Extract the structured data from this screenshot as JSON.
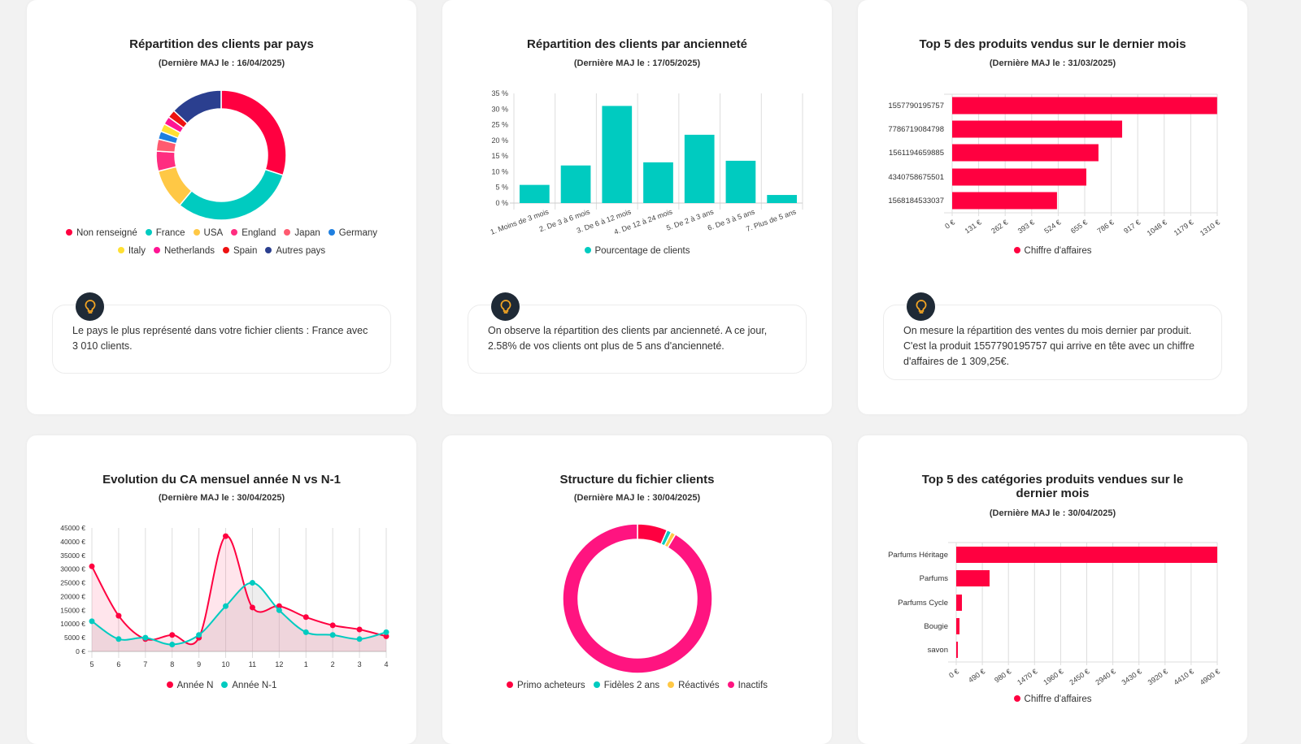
{
  "colors": {
    "red": "#ff0040",
    "cyan": "#00cbc0",
    "yellow": "#ffc845",
    "pink": "#ff2d80",
    "coral": "#ff5a70",
    "blue": "#1e7fe0",
    "lightyellow": "#ffe033",
    "magenta": "#ff1493",
    "spain": "#ee1111",
    "navy": "#2b3f8f",
    "bulb": "#f5a623"
  },
  "cards": [
    {
      "title": "Répartition des clients par pays",
      "subtitle": "(Dernière MAJ le : 16/04/2025)",
      "insight": "Le pays le plus représenté dans votre fichier clients : France avec 3 010 clients.",
      "icon": "lightbulb-icon"
    },
    {
      "title": "Répartition des clients par ancienneté",
      "subtitle": "(Dernière MAJ le : 17/05/2025)",
      "insight": "On observe la répartition des clients par ancienneté. A ce jour, 2.58% de vos clients ont plus de 5 ans d'ancienneté.",
      "icon": "lightbulb-icon"
    },
    {
      "title": "Top 5 des produits vendus sur le dernier mois",
      "subtitle": "(Dernière MAJ le : 31/03/2025)",
      "insight": "On mesure la répartition des ventes du mois dernier par produit. C'est la produit 1557790195757 qui arrive en tête avec un chiffre d'affaires de 1 309,25€.",
      "icon": "lightbulb-icon"
    },
    {
      "title": "Evolution du CA mensuel année N vs N-1",
      "subtitle": "(Dernière MAJ le : 30/04/2025)"
    },
    {
      "title": "Structure du fichier clients",
      "subtitle": "(Dernière MAJ le : 30/04/2025)"
    },
    {
      "title": "Top 5 des catégories produits vendues sur le dernier mois",
      "subtitle": "(Dernière MAJ le : 30/04/2025)"
    }
  ],
  "chart_data": [
    {
      "type": "pie",
      "donut": true,
      "categories": [
        "Non renseigné",
        "France",
        "USA",
        "England",
        "Japan",
        "Germany",
        "Italy",
        "Netherlands",
        "Spain",
        "Autres pays"
      ],
      "values": [
        30,
        31,
        10,
        5,
        3,
        2,
        2,
        2,
        2,
        13
      ],
      "colors": [
        "#ff0040",
        "#00cbc0",
        "#ffc845",
        "#ff2d80",
        "#ff5a70",
        "#1e7fe0",
        "#ffe033",
        "#ff1493",
        "#ee1111",
        "#2b3f8f"
      ],
      "legend": "bottom"
    },
    {
      "type": "bar",
      "categories": [
        "1. Moins de 3 mois",
        "2. De 3 à 6 mois",
        "3. De 6 à 12 mois",
        "4. De 12 à 24 mois",
        "5. De 2 à 3 ans",
        "6. De 3 à 5 ans",
        "7. Plus de 5 ans"
      ],
      "series": [
        {
          "name": "Pourcentage de clients",
          "values": [
            5.8,
            12,
            31,
            13,
            21.8,
            13.5,
            2.58
          ],
          "color": "#00cbc0"
        }
      ],
      "ylim": [
        0,
        35
      ],
      "yticks": [
        "0 %",
        "5 %",
        "10 %",
        "15 %",
        "20 %",
        "25 %",
        "30 %",
        "35 %"
      ],
      "grid": true,
      "legend": "bottom"
    },
    {
      "type": "bar",
      "orientation": "horizontal",
      "categories": [
        "1557790195757",
        "7786719084798",
        "1561194659885",
        "4340758675501",
        "1568184533037"
      ],
      "series": [
        {
          "name": "Chiffre d'affaires",
          "values": [
            1309.25,
            840,
            723,
            663,
            518
          ],
          "color": "#ff0040"
        }
      ],
      "xlim": [
        0,
        1310
      ],
      "xticks": [
        "0 €",
        "131 €",
        "262 €",
        "393 €",
        "524 €",
        "655 €",
        "786 €",
        "917 €",
        "1048 €",
        "1179 €",
        "1310 €"
      ],
      "grid": true,
      "legend": "bottom"
    },
    {
      "type": "line",
      "area": true,
      "categories": [
        "5",
        "6",
        "7",
        "8",
        "9",
        "10",
        "11",
        "12",
        "1",
        "2",
        "3",
        "4"
      ],
      "series": [
        {
          "name": "Année N",
          "values": [
            31000,
            13000,
            4500,
            6000,
            5000,
            42000,
            16000,
            16500,
            12500,
            9500,
            8000,
            5500
          ],
          "color": "#ff0040"
        },
        {
          "name": "Année N-1",
          "values": [
            11000,
            4500,
            5000,
            2500,
            6000,
            16500,
            25000,
            15000,
            7000,
            6000,
            4500,
            7000
          ],
          "color": "#00cbc0"
        }
      ],
      "ylim": [
        0,
        45000
      ],
      "yticks": [
        "0 €",
        "5000 €",
        "10000 €",
        "15000 €",
        "20000 €",
        "25000 €",
        "30000 €",
        "35000 €",
        "40000 €",
        "45000 €"
      ],
      "grid": true,
      "legend": "bottom"
    },
    {
      "type": "pie",
      "donut": true,
      "categories": [
        "Primo acheteurs",
        "Fidèles 2 ans",
        "Réactivés",
        "Inactifs"
      ],
      "values": [
        6.5,
        1,
        1,
        91.5
      ],
      "colors": [
        "#ff0040",
        "#00cbc0",
        "#ffc845",
        "#ff1480"
      ],
      "legend": "bottom"
    },
    {
      "type": "bar",
      "orientation": "horizontal",
      "categories": [
        "Parfums Héritage",
        "Parfums",
        "Parfums Cycle",
        "Bougie",
        "savon"
      ],
      "series": [
        {
          "name": "Chiffre d'affaires",
          "values": [
            4900,
            626,
            107,
            61,
            30
          ],
          "color": "#ff0040"
        }
      ],
      "xlim": [
        0,
        4900
      ],
      "xticks": [
        "0 €",
        "490 €",
        "980 €",
        "1470 €",
        "1960 €",
        "2450 €",
        "2940 €",
        "3430 €",
        "3920 €",
        "4410 €",
        "4900 €"
      ],
      "grid": true,
      "legend": "bottom"
    }
  ]
}
